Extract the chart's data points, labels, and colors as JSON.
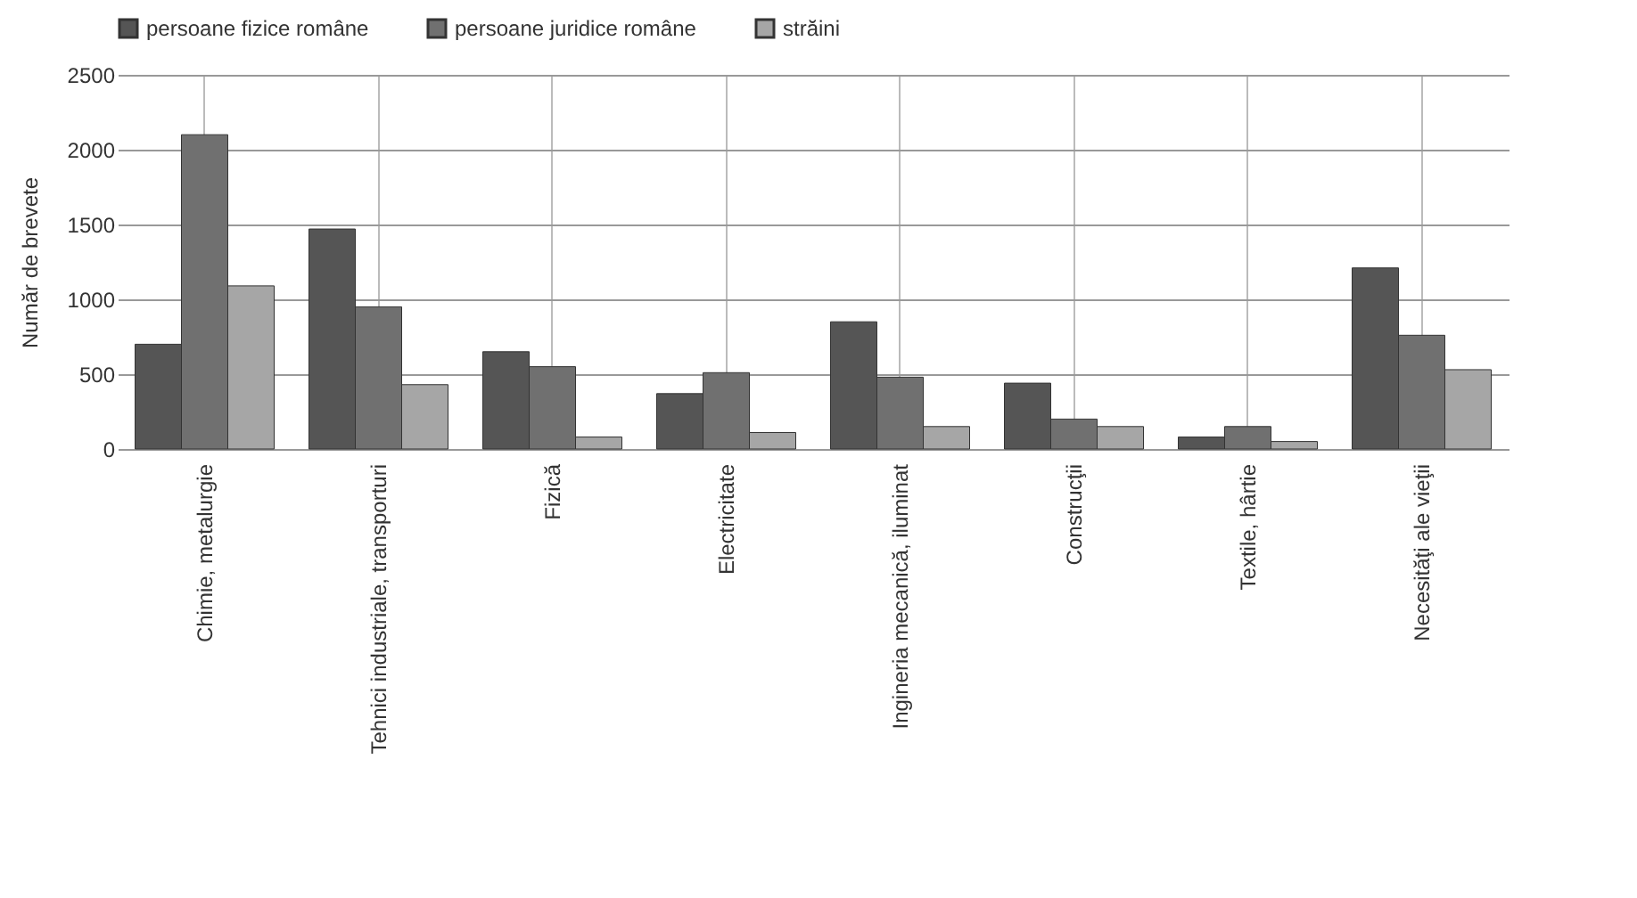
{
  "chart_data": {
    "type": "bar",
    "ylabel": "Număr de brevete",
    "categories": [
      "Chimie, metalurgie",
      "Tehnici industriale, transporturi",
      "Fizică",
      "Electricitate",
      "Ingineria mecanică, iluminat",
      "Construcţii",
      "Textile, hârtie",
      "Necesităţi ale vieţii"
    ],
    "series": [
      {
        "name": "persoane fizice române",
        "color": "#555555",
        "values": [
          700,
          1470,
          650,
          370,
          850,
          440,
          80,
          1210
        ]
      },
      {
        "name": "persoane juridice române",
        "color": "#707070",
        "values": [
          2100,
          950,
          550,
          510,
          480,
          200,
          150,
          760
        ]
      },
      {
        "name": "străini",
        "color": "#a6a6a6",
        "values": [
          1090,
          430,
          80,
          110,
          150,
          150,
          50,
          530
        ]
      }
    ],
    "ylim": [
      0,
      2500
    ],
    "yticks": [
      0,
      500,
      1000,
      1500,
      2000,
      2500
    ],
    "grid": true,
    "legend": "top"
  }
}
